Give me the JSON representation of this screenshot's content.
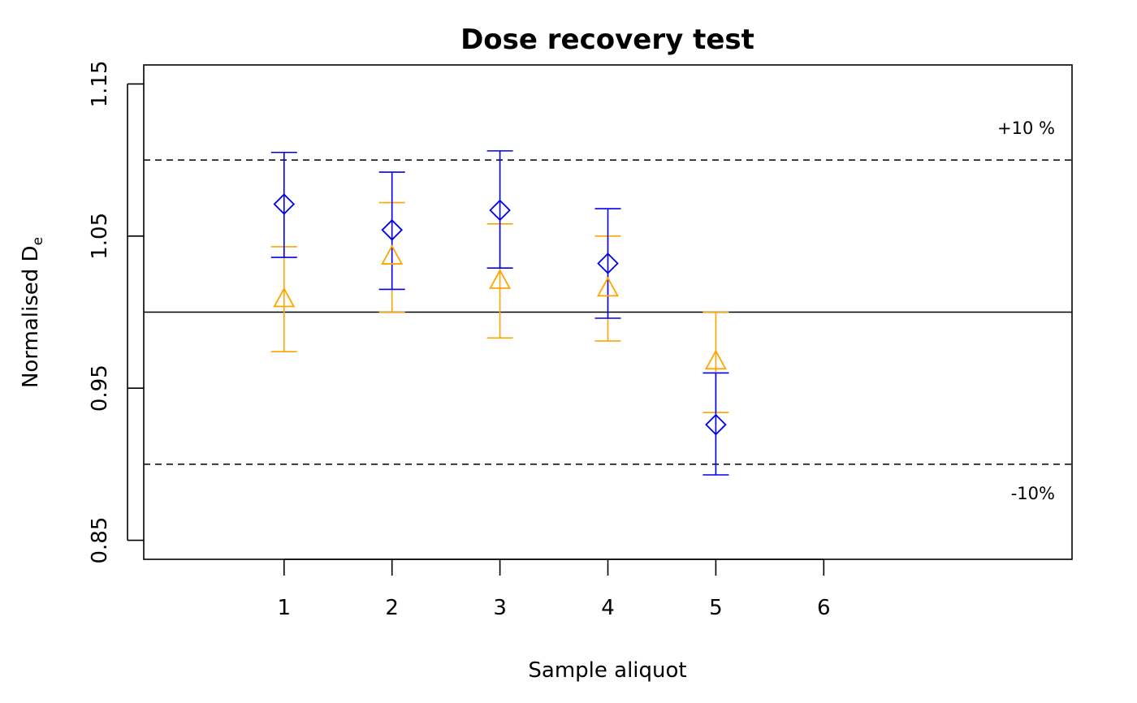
{
  "chart_data": {
    "type": "scatter",
    "title": "Dose recovery test",
    "xlabel": "Sample aliquot",
    "ylabel_main": "Normalised D",
    "ylabel_sub": "e",
    "x_ticks": [
      "1",
      "2",
      "3",
      "4",
      "5",
      "6"
    ],
    "y_ticks": [
      "0.85",
      "0.95",
      "1.05",
      "1.15"
    ],
    "xlim": [
      -0.3,
      8.3
    ],
    "ylim": [
      0.8375,
      1.1625
    ],
    "reference_lines": [
      {
        "y": 1.0,
        "style": "solid"
      },
      {
        "y": 1.1,
        "style": "dashed",
        "label": "+10 %"
      },
      {
        "y": 0.9,
        "style": "dashed",
        "label": "-10%"
      }
    ],
    "series": [
      {
        "marker": "triangle",
        "color": "#FFA500",
        "x": [
          1,
          2,
          3,
          4,
          5
        ],
        "y": [
          1.008,
          1.036,
          1.02,
          1.015,
          0.967
        ],
        "err_low": [
          0.974,
          1.0,
          0.983,
          0.981,
          0.934
        ],
        "err_high": [
          1.043,
          1.072,
          1.058,
          1.05,
          1.0
        ]
      },
      {
        "marker": "diamond",
        "color": "#0000EE",
        "x": [
          1,
          2,
          3,
          4,
          5
        ],
        "y": [
          1.071,
          1.054,
          1.067,
          1.032,
          0.926
        ],
        "err_low": [
          1.036,
          1.015,
          1.029,
          0.996,
          0.893
        ],
        "err_high": [
          1.105,
          1.092,
          1.106,
          1.068,
          0.96
        ]
      }
    ]
  }
}
